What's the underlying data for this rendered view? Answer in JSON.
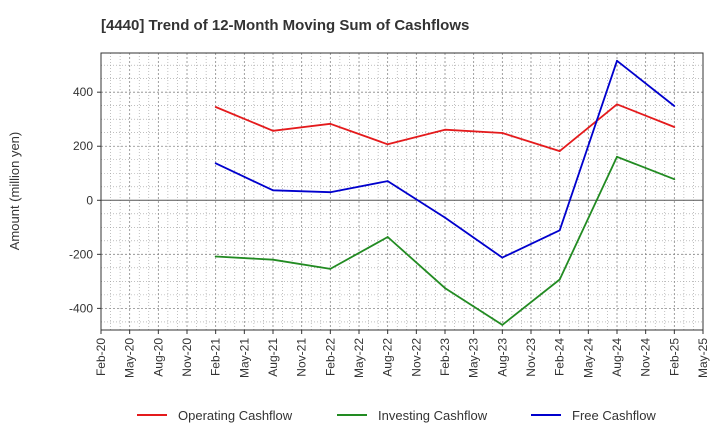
{
  "chart_data": {
    "type": "line",
    "title": "[4440]  Trend of 12-Month Moving Sum of Cashflows",
    "xlabel": "",
    "ylabel": "Amount (million yen)",
    "x_ticks": [
      "Feb-20",
      "May-20",
      "Aug-20",
      "Nov-20",
      "Feb-21",
      "May-21",
      "Aug-21",
      "Nov-21",
      "Feb-22",
      "May-22",
      "Aug-22",
      "Nov-22",
      "Feb-23",
      "May-23",
      "Aug-23",
      "Nov-23",
      "Feb-24",
      "May-24",
      "Aug-24",
      "Nov-24",
      "Feb-25",
      "May-25"
    ],
    "y_ticks": [
      -400,
      -200,
      0,
      200,
      400
    ],
    "ylim": [
      -480,
      545
    ],
    "grid": true,
    "legend_position": "bottom",
    "series": [
      {
        "name": "Operating Cashflow",
        "color": "#e41a1c",
        "points": [
          {
            "x": "Feb-21",
            "y": 345
          },
          {
            "x": "Aug-21",
            "y": 257
          },
          {
            "x": "Feb-22",
            "y": 283
          },
          {
            "x": "Aug-22",
            "y": 207
          },
          {
            "x": "Feb-23",
            "y": 261
          },
          {
            "x": "Aug-23",
            "y": 249
          },
          {
            "x": "Feb-24",
            "y": 182
          },
          {
            "x": "Aug-24",
            "y": 355
          },
          {
            "x": "Feb-25",
            "y": 271
          }
        ]
      },
      {
        "name": "Investing Cashflow",
        "color": "#228b22",
        "points": [
          {
            "x": "Feb-21",
            "y": -208
          },
          {
            "x": "Aug-21",
            "y": -220
          },
          {
            "x": "Feb-22",
            "y": -254
          },
          {
            "x": "Aug-22",
            "y": -136
          },
          {
            "x": "Feb-23",
            "y": -325
          },
          {
            "x": "Aug-23",
            "y": -461
          },
          {
            "x": "Feb-24",
            "y": -293
          },
          {
            "x": "Aug-24",
            "y": 161
          },
          {
            "x": "Feb-25",
            "y": 78
          }
        ]
      },
      {
        "name": "Free Cashflow",
        "color": "#0000cd",
        "points": [
          {
            "x": "Feb-21",
            "y": 137
          },
          {
            "x": "Aug-21",
            "y": 37
          },
          {
            "x": "Feb-22",
            "y": 30
          },
          {
            "x": "Aug-22",
            "y": 71
          },
          {
            "x": "Feb-23",
            "y": -64
          },
          {
            "x": "Aug-23",
            "y": -212
          },
          {
            "x": "Feb-24",
            "y": -111
          },
          {
            "x": "Aug-24",
            "y": 516
          },
          {
            "x": "Feb-25",
            "y": 349
          }
        ]
      }
    ]
  }
}
